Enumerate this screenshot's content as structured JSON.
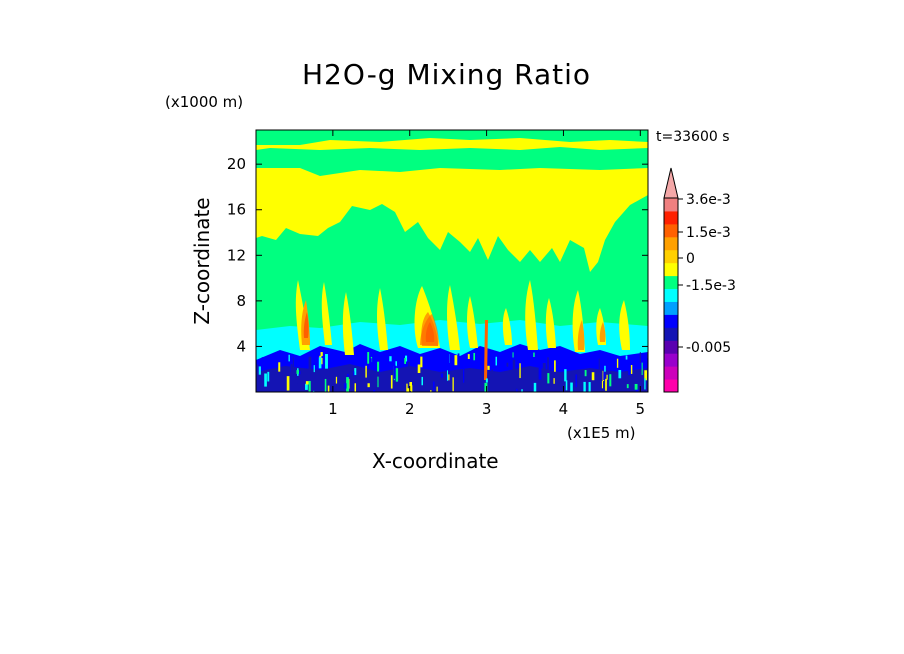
{
  "chart_data": {
    "type": "heatmap",
    "title": "H2O-g Mixing Ratio",
    "time_label": "t=33600 s",
    "xlabel": "X-coordinate",
    "ylabel": "Z-coordinate",
    "x_unit": "(x1E5 m)",
    "y_unit": "(x1000 m)",
    "x_ticks": [
      1,
      2,
      3,
      4,
      5
    ],
    "y_ticks": [
      4,
      8,
      12,
      16,
      20
    ],
    "xlim": [
      0,
      5.1
    ],
    "ylim": [
      0,
      23
    ],
    "colorbar": {
      "labels": [
        "3.6e-3",
        "1.5e-3",
        "0",
        "-1.5e-3",
        "-0.005"
      ],
      "extend": "max",
      "levels": [
        {
          "color": "#ff00aa"
        },
        {
          "color": "#cc00bb"
        },
        {
          "color": "#9900cc"
        },
        {
          "color": "#5a00b0"
        },
        {
          "color": "#1414b4"
        },
        {
          "color": "#0000ff"
        },
        {
          "color": "#00a0ff"
        },
        {
          "color": "#00ffff"
        },
        {
          "color": "#00ff80"
        },
        {
          "color": "#ffff00"
        },
        {
          "color": "#ffd000"
        },
        {
          "color": "#ffa000"
        },
        {
          "color": "#ff6000"
        },
        {
          "color": "#ff2000"
        },
        {
          "color": "#f08080"
        },
        {
          "color": "#f4a8a8"
        }
      ]
    }
  }
}
